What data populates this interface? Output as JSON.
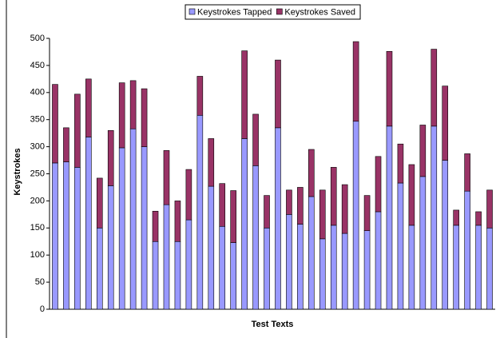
{
  "chart_data": {
    "type": "stacked_bar",
    "x_label": "Test Texts",
    "y_label": "Keystrokes",
    "categories": [
      null,
      null,
      null,
      null,
      null,
      null,
      null,
      null,
      null,
      null,
      null,
      null,
      null,
      null,
      null,
      null,
      null,
      null,
      null,
      null,
      null,
      null,
      null,
      null,
      null,
      null,
      null,
      null,
      null,
      null,
      null,
      null,
      null,
      null,
      null,
      null,
      null,
      null,
      null,
      null
    ],
    "series": [
      {
        "name": "Keystrokes Tapped",
        "color": "#9999ff",
        "values": [
          270,
          272,
          262,
          318,
          150,
          228,
          298,
          333,
          300,
          125,
          193,
          125,
          165,
          358,
          227,
          153,
          123,
          315,
          265,
          150,
          335,
          175,
          157,
          208,
          130,
          155,
          140,
          347,
          145,
          180,
          338,
          233,
          155,
          245,
          338,
          275,
          155,
          218,
          155,
          150
        ]
      },
      {
        "name": "Keystrokes Saved",
        "color": "#993366",
        "values": [
          145,
          63,
          135,
          107,
          92,
          102,
          120,
          89,
          107,
          56,
          100,
          75,
          93,
          72,
          88,
          79,
          96,
          162,
          95,
          60,
          125,
          45,
          68,
          87,
          90,
          107,
          90,
          147,
          65,
          102,
          138,
          72,
          112,
          95,
          142,
          137,
          28,
          69,
          25,
          70
        ]
      }
    ],
    "ylim": [
      0,
      500
    ],
    "yticks": [
      0,
      50,
      100,
      150,
      200,
      250,
      300,
      350,
      400,
      450,
      500
    ],
    "grid": false,
    "legend": "top"
  }
}
